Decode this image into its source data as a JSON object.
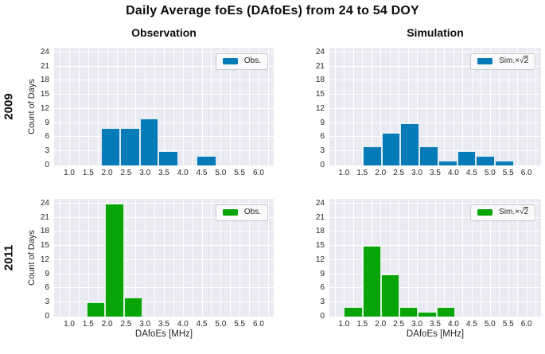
{
  "figure": {
    "title": "Daily Average foEs (DAfoEs) from 24 to 54 DOY",
    "column_headers": [
      "Observation",
      "Simulation"
    ],
    "row_headers": [
      "2009",
      "2011"
    ]
  },
  "axes": {
    "xlabel": "DAfoEs [MHz]",
    "ylabel": "Count of Days",
    "x_ticks": [
      "1.0",
      "1.5",
      "2.0",
      "2.5",
      "3.0",
      "3.5",
      "4.0",
      "4.5",
      "5.0",
      "5.5",
      "6.0"
    ],
    "y_ticks": [
      0,
      3,
      6,
      9,
      12,
      15,
      18,
      21,
      24
    ],
    "xlim": [
      0.6,
      6.4
    ],
    "ylim": [
      0,
      25
    ],
    "x_grid_step": 0.25,
    "grid": true,
    "plot_background": "#eaeaf2",
    "grid_color": "#ffffff",
    "legend_position": "upper right"
  },
  "chart_data": [
    {
      "type": "bar",
      "panel": "2009-observation",
      "row": "2009",
      "column": "Observation",
      "legend": "Obs.",
      "color": "#077bb8",
      "bin_edges": [
        1.84,
        2.35,
        2.86,
        3.36,
        3.87,
        4.37,
        4.88
      ],
      "counts": [
        8,
        8,
        10,
        3,
        0,
        2
      ]
    },
    {
      "type": "bar",
      "panel": "2009-simulation",
      "row": "2009",
      "column": "Simulation",
      "legend": "Sim.×√2",
      "color": "#077bb8",
      "bin_edges": [
        1.52,
        2.04,
        2.55,
        3.07,
        3.59,
        4.1,
        4.62,
        5.13,
        5.65
      ],
      "counts": [
        4,
        7,
        9,
        4,
        1,
        3,
        2,
        1
      ]
    },
    {
      "type": "bar",
      "panel": "2011-observation",
      "row": "2011",
      "column": "Observation",
      "legend": "Obs.",
      "color": "#08a408",
      "bin_edges": [
        1.46,
        1.95,
        2.45,
        2.94
      ],
      "counts": [
        3,
        24,
        4
      ]
    },
    {
      "type": "bar",
      "panel": "2011-simulation",
      "row": "2011",
      "column": "Simulation",
      "legend": "Sim.×√2",
      "color": "#08a408",
      "bin_edges": [
        1.0,
        1.51,
        2.02,
        2.52,
        3.03,
        3.54,
        4.05
      ],
      "counts": [
        2,
        15,
        9,
        2,
        1,
        2
      ]
    }
  ]
}
